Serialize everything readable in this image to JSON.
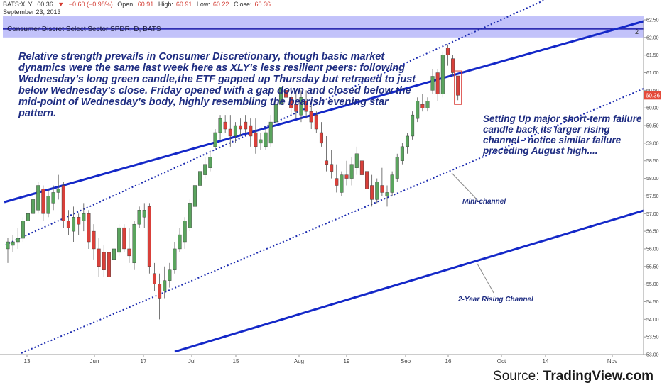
{
  "header": {
    "symbol": "BATS:XLY",
    "last": "60.36",
    "change_arrow": "▼",
    "change": "−0.60 (−0.98%)",
    "open_label": "Open:",
    "open": "60.91",
    "high_label": "High:",
    "high": "60.91",
    "low_label": "Low:",
    "low": "60.22",
    "close_label": "Close:",
    "close": "60.36",
    "date": "September 23, 2013"
  },
  "legend": {
    "title": "Consumer Discret Select Sector SPDR, D, BATS",
    "number": "2"
  },
  "annotations": {
    "main": "Relative strength prevails in Consumer Discretionary, though basic market dynamics were the same last week here as XLY's less resilient peers: following Wednesday's long green candle,the ETF gapped up Thursday but retraced to just below Wednesday's close. Friday opened with a gap down and closed below the mid-point of Wednesday's body, highly resembling the bearish evening star pattern.",
    "side": "Setting Up major short-term failure candle back its larger rising channel - notice similar failure preceding August high....",
    "mini_channel": "Mini-channel",
    "rising_channel": "2-Year Rising Channel"
  },
  "source": {
    "prefix": "Source: ",
    "brand": "TradingView.com"
  },
  "colors": {
    "up": "#5aa45e",
    "down": "#d9403a",
    "channel": "#1428c8",
    "band": "#8f8ff5",
    "annotation": "#1f2d82",
    "price_tag": "#e44b3a"
  },
  "chart_data": {
    "type": "candlestick",
    "title": "Consumer Discret Select Sector SPDR, D, BATS",
    "ylim": [
      53.0,
      62.5
    ],
    "yticks": [
      "53.00",
      "53.50",
      "54.00",
      "54.50",
      "55.00",
      "55.50",
      "56.00",
      "56.50",
      "57.00",
      "57.50",
      "58.00",
      "58.50",
      "59.00",
      "59.50",
      "60.00",
      "60.50",
      "61.00",
      "61.50",
      "62.00",
      "62.50"
    ],
    "xticks": [
      "13",
      "Jun",
      "17",
      "Jul",
      "15",
      "Aug",
      "19",
      "Sep",
      "16",
      "Oct",
      "14",
      "Nov"
    ],
    "last_price": "60.36",
    "band": [
      62.0,
      62.6
    ],
    "series": [
      {
        "o": 56.0,
        "h": 56.3,
        "l": 55.6,
        "c": 56.2
      },
      {
        "o": 56.1,
        "h": 56.4,
        "l": 55.9,
        "c": 56.2
      },
      {
        "o": 56.2,
        "h": 56.6,
        "l": 56.0,
        "c": 56.3
      },
      {
        "o": 56.3,
        "h": 56.9,
        "l": 56.2,
        "c": 56.8
      },
      {
        "o": 56.8,
        "h": 57.2,
        "l": 56.7,
        "c": 57.0
      },
      {
        "o": 57.0,
        "h": 57.5,
        "l": 56.8,
        "c": 57.4
      },
      {
        "o": 57.1,
        "h": 57.9,
        "l": 57.0,
        "c": 57.8
      },
      {
        "o": 57.7,
        "h": 57.8,
        "l": 56.8,
        "c": 57.0
      },
      {
        "o": 57.0,
        "h": 57.7,
        "l": 56.9,
        "c": 57.5
      },
      {
        "o": 57.3,
        "h": 57.8,
        "l": 57.1,
        "c": 57.6
      },
      {
        "o": 57.6,
        "h": 58.1,
        "l": 57.4,
        "c": 57.7
      },
      {
        "o": 57.8,
        "h": 57.9,
        "l": 56.6,
        "c": 56.8
      },
      {
        "o": 56.8,
        "h": 57.1,
        "l": 56.4,
        "c": 56.6
      },
      {
        "o": 56.5,
        "h": 57.2,
        "l": 56.2,
        "c": 56.9
      },
      {
        "o": 56.9,
        "h": 57.0,
        "l": 56.4,
        "c": 56.7
      },
      {
        "o": 56.8,
        "h": 57.3,
        "l": 56.5,
        "c": 57.0
      },
      {
        "o": 57.0,
        "h": 57.1,
        "l": 56.0,
        "c": 56.2
      },
      {
        "o": 56.5,
        "h": 56.7,
        "l": 55.7,
        "c": 56.0
      },
      {
        "o": 56.0,
        "h": 56.3,
        "l": 55.2,
        "c": 55.5
      },
      {
        "o": 55.9,
        "h": 56.1,
        "l": 55.2,
        "c": 55.4
      },
      {
        "o": 55.9,
        "h": 56.1,
        "l": 54.9,
        "c": 55.2
      },
      {
        "o": 55.7,
        "h": 56.2,
        "l": 55.5,
        "c": 56.0
      },
      {
        "o": 55.9,
        "h": 56.7,
        "l": 55.8,
        "c": 56.6
      },
      {
        "o": 56.6,
        "h": 56.7,
        "l": 55.9,
        "c": 56.0
      },
      {
        "o": 56.0,
        "h": 56.6,
        "l": 55.6,
        "c": 55.8
      },
      {
        "o": 55.6,
        "h": 56.8,
        "l": 55.4,
        "c": 56.7
      },
      {
        "o": 56.7,
        "h": 57.2,
        "l": 56.6,
        "c": 57.1
      },
      {
        "o": 56.9,
        "h": 57.3,
        "l": 56.6,
        "c": 57.1
      },
      {
        "o": 57.2,
        "h": 57.3,
        "l": 55.3,
        "c": 55.5
      },
      {
        "o": 55.3,
        "h": 55.6,
        "l": 54.8,
        "c": 55.0
      },
      {
        "o": 55.0,
        "h": 55.3,
        "l": 54.0,
        "c": 54.6
      },
      {
        "o": 54.8,
        "h": 55.5,
        "l": 54.6,
        "c": 55.1
      },
      {
        "o": 55.1,
        "h": 55.6,
        "l": 54.9,
        "c": 55.4
      },
      {
        "o": 55.4,
        "h": 56.2,
        "l": 55.3,
        "c": 56.0
      },
      {
        "o": 56.0,
        "h": 56.6,
        "l": 55.9,
        "c": 56.4
      },
      {
        "o": 56.2,
        "h": 56.9,
        "l": 56.0,
        "c": 56.8
      },
      {
        "o": 56.6,
        "h": 57.4,
        "l": 56.5,
        "c": 57.3
      },
      {
        "o": 57.2,
        "h": 57.9,
        "l": 57.0,
        "c": 57.8
      },
      {
        "o": 57.8,
        "h": 58.4,
        "l": 57.7,
        "c": 58.2
      },
      {
        "o": 58.1,
        "h": 58.6,
        "l": 58.0,
        "c": 58.4
      },
      {
        "o": 58.3,
        "h": 58.8,
        "l": 58.2,
        "c": 58.6
      },
      {
        "o": 58.9,
        "h": 59.4,
        "l": 58.8,
        "c": 59.3
      },
      {
        "o": 59.3,
        "h": 59.8,
        "l": 59.1,
        "c": 59.7
      },
      {
        "o": 59.6,
        "h": 59.8,
        "l": 59.3,
        "c": 59.4
      },
      {
        "o": 59.4,
        "h": 59.8,
        "l": 58.9,
        "c": 59.2
      },
      {
        "o": 59.2,
        "h": 59.6,
        "l": 59.0,
        "c": 59.5
      },
      {
        "o": 59.5,
        "h": 59.7,
        "l": 59.2,
        "c": 59.4
      },
      {
        "o": 59.6,
        "h": 59.8,
        "l": 59.3,
        "c": 59.4
      },
      {
        "o": 59.5,
        "h": 59.7,
        "l": 58.9,
        "c": 59.2
      },
      {
        "o": 59.3,
        "h": 59.7,
        "l": 58.7,
        "c": 58.9
      },
      {
        "o": 59.0,
        "h": 59.3,
        "l": 58.8,
        "c": 59.1
      },
      {
        "o": 58.9,
        "h": 59.4,
        "l": 58.8,
        "c": 59.3
      },
      {
        "o": 59.0,
        "h": 59.8,
        "l": 58.9,
        "c": 59.6
      },
      {
        "o": 59.6,
        "h": 60.2,
        "l": 59.5,
        "c": 60.1
      },
      {
        "o": 60.1,
        "h": 60.7,
        "l": 59.9,
        "c": 60.6
      },
      {
        "o": 60.5,
        "h": 60.7,
        "l": 60.0,
        "c": 60.3
      },
      {
        "o": 60.3,
        "h": 60.6,
        "l": 59.8,
        "c": 60.0
      },
      {
        "o": 60.1,
        "h": 60.5,
        "l": 59.7,
        "c": 59.9
      },
      {
        "o": 59.8,
        "h": 60.5,
        "l": 59.6,
        "c": 60.3
      },
      {
        "o": 60.2,
        "h": 60.5,
        "l": 59.7,
        "c": 59.9
      },
      {
        "o": 59.9,
        "h": 60.2,
        "l": 59.4,
        "c": 59.6
      },
      {
        "o": 59.8,
        "h": 59.9,
        "l": 59.3,
        "c": 59.4
      },
      {
        "o": 59.3,
        "h": 59.6,
        "l": 58.9,
        "c": 59.0
      },
      {
        "o": 58.5,
        "h": 59.2,
        "l": 58.2,
        "c": 58.4
      },
      {
        "o": 58.4,
        "h": 58.8,
        "l": 58.0,
        "c": 58.2
      },
      {
        "o": 58.0,
        "h": 58.4,
        "l": 57.6,
        "c": 57.8
      },
      {
        "o": 57.6,
        "h": 58.2,
        "l": 57.5,
        "c": 58.1
      },
      {
        "o": 58.1,
        "h": 58.5,
        "l": 57.8,
        "c": 58.0
      },
      {
        "o": 58.0,
        "h": 58.6,
        "l": 57.8,
        "c": 58.4
      },
      {
        "o": 58.3,
        "h": 58.9,
        "l": 58.1,
        "c": 58.7
      },
      {
        "o": 58.5,
        "h": 58.8,
        "l": 57.9,
        "c": 58.1
      },
      {
        "o": 58.2,
        "h": 58.4,
        "l": 57.5,
        "c": 57.7
      },
      {
        "o": 57.8,
        "h": 58.1,
        "l": 57.2,
        "c": 57.4
      },
      {
        "o": 57.4,
        "h": 58.0,
        "l": 57.3,
        "c": 57.9
      },
      {
        "o": 57.8,
        "h": 58.3,
        "l": 57.5,
        "c": 57.6
      },
      {
        "o": 57.5,
        "h": 57.8,
        "l": 57.2,
        "c": 57.6
      },
      {
        "o": 57.6,
        "h": 58.2,
        "l": 57.5,
        "c": 58.1
      },
      {
        "o": 58.0,
        "h": 58.7,
        "l": 57.9,
        "c": 58.6
      },
      {
        "o": 58.5,
        "h": 59.0,
        "l": 58.4,
        "c": 58.9
      },
      {
        "o": 58.9,
        "h": 59.3,
        "l": 58.7,
        "c": 59.2
      },
      {
        "o": 59.2,
        "h": 59.9,
        "l": 59.1,
        "c": 59.8
      },
      {
        "o": 59.7,
        "h": 60.3,
        "l": 59.6,
        "c": 60.2
      },
      {
        "o": 60.1,
        "h": 60.4,
        "l": 59.9,
        "c": 60.0
      },
      {
        "o": 60.0,
        "h": 60.3,
        "l": 59.9,
        "c": 60.2
      },
      {
        "o": 60.5,
        "h": 61.1,
        "l": 60.4,
        "c": 60.9
      },
      {
        "o": 61.0,
        "h": 61.1,
        "l": 60.2,
        "c": 60.4
      },
      {
        "o": 60.4,
        "h": 61.6,
        "l": 60.3,
        "c": 61.5
      },
      {
        "o": 61.7,
        "h": 61.8,
        "l": 61.2,
        "c": 61.5
      },
      {
        "o": 61.4,
        "h": 61.5,
        "l": 60.9,
        "c": 61.0
      },
      {
        "o": 60.91,
        "h": 60.91,
        "l": 60.22,
        "c": 60.36
      }
    ]
  }
}
